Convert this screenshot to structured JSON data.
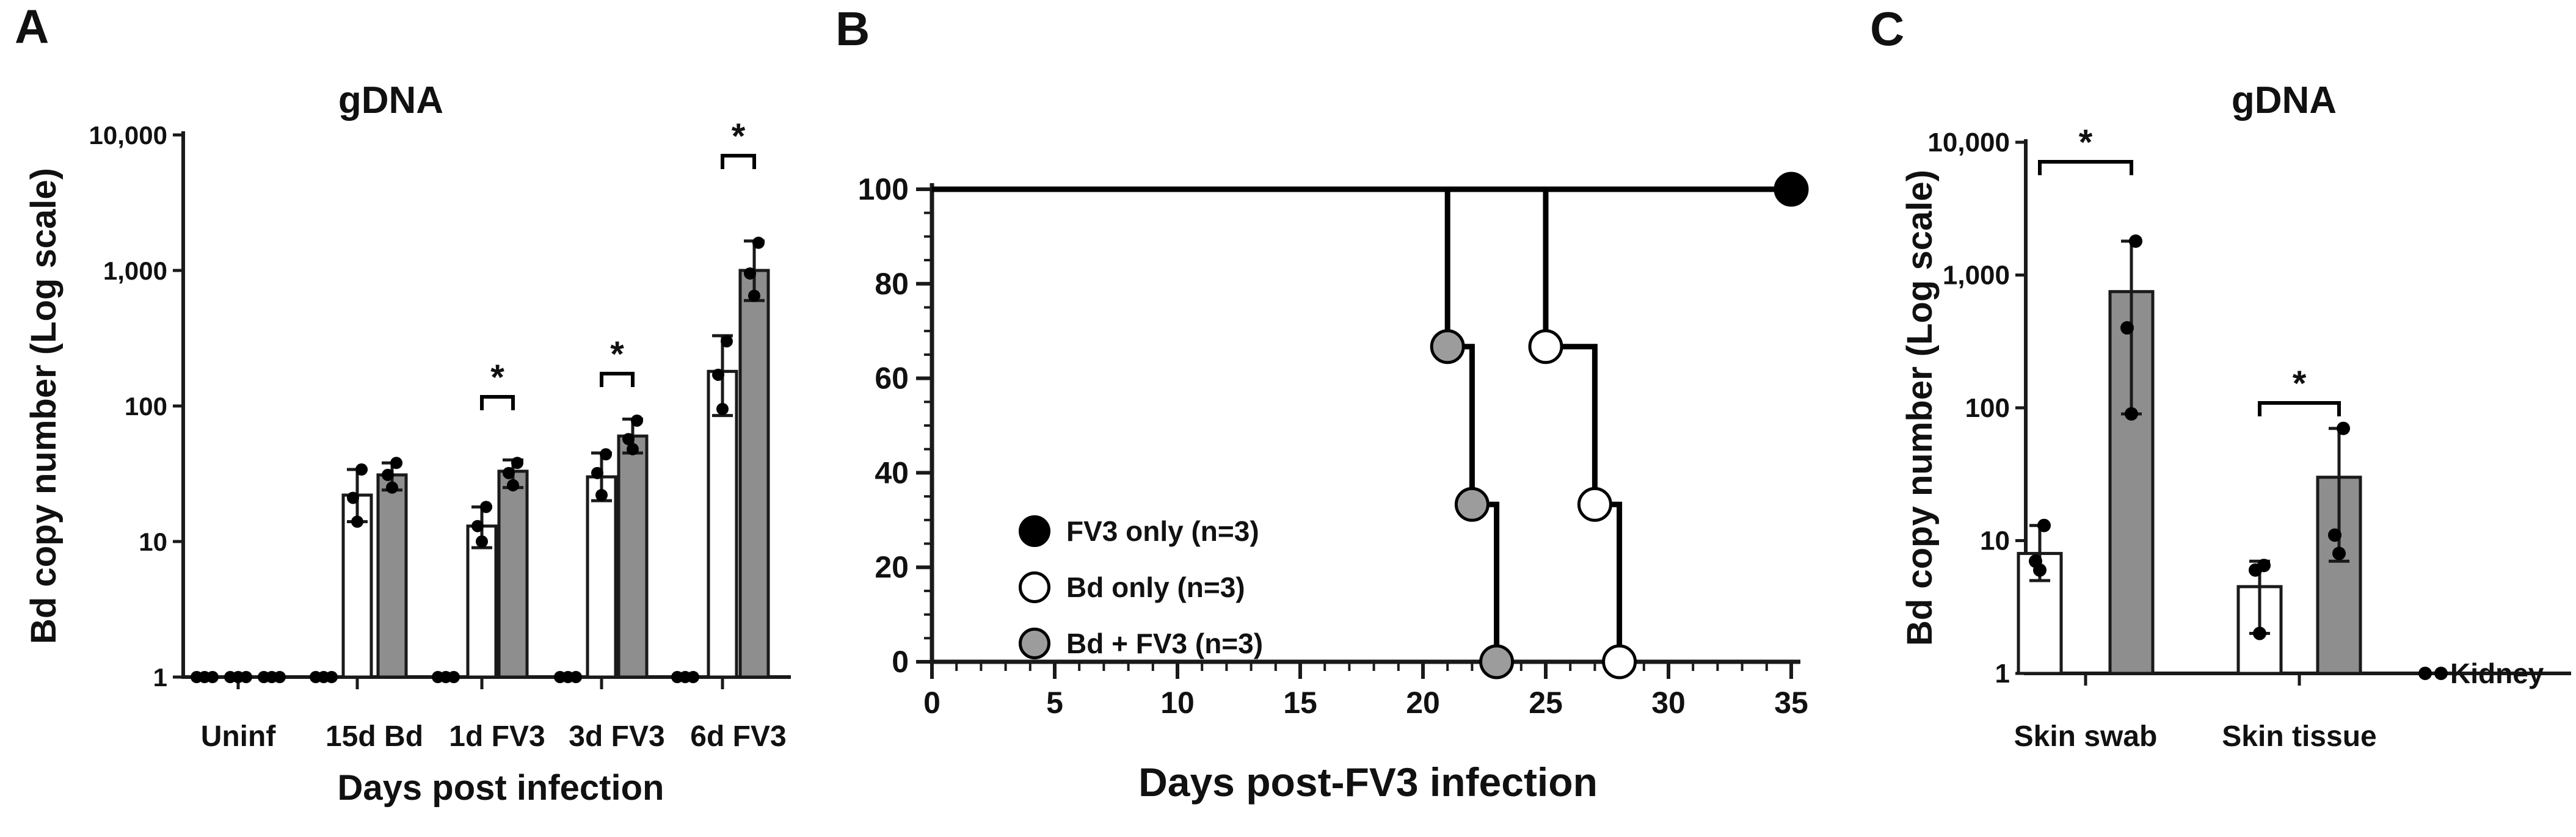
{
  "colors": {
    "ink": "#1a1a1a",
    "dot": "#000000",
    "bar_white": "#ffffff",
    "bar_gray": "#8e8e8e",
    "marker_black": "#000000",
    "marker_white": "#ffffff",
    "marker_gray": "#9c9c9c"
  },
  "figure": {
    "panels": {
      "a": {
        "label": "A",
        "title": "gDNA",
        "y_label": "Bd copy number (Log scale)",
        "x_label": "Days post infection"
      },
      "b": {
        "label": "B",
        "x_label": "Days post-FV3 infection"
      },
      "c": {
        "label": "C",
        "title": "gDNA",
        "y_label": "Bd copy number (Log scale)"
      }
    }
  },
  "chart_data": [
    {
      "panel": "A",
      "type": "bar",
      "title": "gDNA",
      "xlabel": "Days post infection",
      "ylabel": "Bd copy number (Log scale)",
      "y_scale": "log",
      "ylim": [
        1,
        10000
      ],
      "y_ticks": [
        "1",
        "10",
        "100",
        "1,000",
        "10,000"
      ],
      "categories": [
        "Uninf",
        "15d Bd",
        "1d FV3",
        "3d FV3",
        "6d FV3"
      ],
      "series": [
        {
          "name": "FV3 only",
          "style": "dots",
          "values": [
            1,
            1,
            1,
            1,
            1
          ],
          "points": [
            [
              1,
              1,
              1
            ],
            [
              1,
              1,
              1
            ],
            [
              1,
              1,
              1
            ],
            [
              1,
              1,
              1
            ],
            [
              1,
              1,
              1
            ]
          ]
        },
        {
          "name": "Bd only",
          "style": "bar-white",
          "values": [
            1,
            22,
            13,
            30,
            180
          ],
          "err_low": [
            1,
            14,
            9,
            20,
            85
          ],
          "err_high": [
            1,
            34,
            18,
            45,
            330
          ],
          "points": [
            [
              1,
              1,
              1
            ],
            [
              14,
              21,
              34
            ],
            [
              10,
              13,
              18
            ],
            [
              22,
              32,
              44
            ],
            [
              95,
              170,
              300
            ]
          ]
        },
        {
          "name": "Bd + FV3",
          "style": "bar-gray",
          "values": [
            1,
            31,
            33,
            60,
            1000
          ],
          "err_low": [
            1,
            24,
            25,
            45,
            600
          ],
          "err_high": [
            1,
            38,
            40,
            80,
            1650
          ],
          "points": [
            [
              1,
              1,
              1
            ],
            [
              25,
              31,
              38
            ],
            [
              26,
              32,
              38
            ],
            [
              48,
              57,
              78
            ],
            [
              650,
              950,
              1600
            ]
          ]
        }
      ],
      "significance": [
        {
          "category": "1d FV3",
          "label": "*"
        },
        {
          "category": "3d FV3",
          "label": "*"
        },
        {
          "category": "6d FV3",
          "label": "*"
        }
      ]
    },
    {
      "panel": "B",
      "type": "line",
      "subtype": "survival-curve",
      "xlabel": "Days post-FV3 infection",
      "xlim": [
        0,
        35
      ],
      "x_ticks": [
        "0",
        "5",
        "10",
        "15",
        "20",
        "25",
        "30",
        "35"
      ],
      "ylim": [
        0,
        100
      ],
      "y_ticks": [
        "0",
        "20",
        "40",
        "60",
        "80",
        "100"
      ],
      "legend_position": "inside-left",
      "series": [
        {
          "name": "FV3 only (n=3)",
          "marker": "black",
          "steps": [
            [
              0,
              100
            ],
            [
              35,
              100
            ]
          ],
          "markers": [
            [
              35,
              100
            ]
          ]
        },
        {
          "name": "Bd only (n=3)",
          "marker": "white",
          "steps": [
            [
              0,
              100
            ],
            [
              25,
              100
            ],
            [
              25,
              66.7
            ],
            [
              27,
              66.7
            ],
            [
              27,
              33.3
            ],
            [
              28,
              33.3
            ],
            [
              28,
              0
            ]
          ],
          "markers": [
            [
              25,
              66.7
            ],
            [
              27,
              33.3
            ],
            [
              28,
              0
            ]
          ]
        },
        {
          "name": "Bd + FV3 (n=3)",
          "marker": "gray",
          "steps": [
            [
              0,
              100
            ],
            [
              21,
              100
            ],
            [
              21,
              66.7
            ],
            [
              22,
              66.7
            ],
            [
              22,
              33.3
            ],
            [
              23,
              33.3
            ],
            [
              23,
              0
            ]
          ],
          "markers": [
            [
              21,
              66.7
            ],
            [
              22,
              33.3
            ],
            [
              23,
              0
            ]
          ]
        }
      ]
    },
    {
      "panel": "C",
      "type": "bar",
      "title": "gDNA",
      "ylabel": "Bd copy number (Log scale)",
      "y_scale": "log",
      "ylim": [
        1,
        10000
      ],
      "y_ticks": [
        "1",
        "10",
        "100",
        "1,000",
        "10,000"
      ],
      "categories": [
        "Skin swab",
        "Skin tissue",
        "Kidney"
      ],
      "series": [
        {
          "name": "Bd only",
          "style": "bar-white",
          "values": [
            8,
            4.5,
            null
          ],
          "err_low": [
            5,
            2,
            null
          ],
          "err_high": [
            13,
            7,
            null
          ],
          "points": [
            [
              6,
              7,
              13
            ],
            [
              2,
              6,
              6.5
            ],
            null
          ]
        },
        {
          "name": "Bd + FV3",
          "style": "bar-gray",
          "values": [
            750,
            30,
            null
          ],
          "err_low": [
            90,
            7,
            null
          ],
          "err_high": [
            1800,
            70,
            null
          ],
          "points": [
            [
              90,
              400,
              1800
            ],
            [
              8,
              11,
              70
            ],
            null
          ]
        }
      ],
      "kidney": {
        "label": "Kidney",
        "points": [
          1,
          1
        ]
      },
      "significance": [
        {
          "category": "Skin swab",
          "label": "*"
        },
        {
          "category": "Skin tissue",
          "label": "*"
        }
      ]
    }
  ]
}
